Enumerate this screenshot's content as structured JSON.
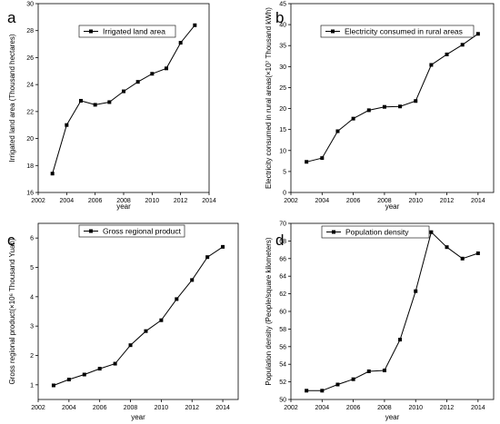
{
  "chart_data": [
    {
      "panel": "a",
      "type": "line",
      "xlabel": "year",
      "ylabel": "Irrigated land area (Thousand hectares)",
      "xlim": [
        2002,
        2014
      ],
      "ylim": [
        16,
        30
      ],
      "xticks": [
        2002,
        2004,
        2006,
        2008,
        2010,
        2012,
        2014
      ],
      "yticks": [
        16,
        18,
        20,
        22,
        24,
        26,
        28,
        30
      ],
      "legend_position": "top-center",
      "series": [
        {
          "name": "Irrigated land area",
          "x": [
            2003,
            2004,
            2005,
            2006,
            2007,
            2008,
            2009,
            2010,
            2011,
            2012,
            2013
          ],
          "y": [
            17.4,
            21.0,
            22.8,
            22.5,
            22.7,
            23.5,
            24.2,
            24.8,
            25.2,
            27.1,
            28.4
          ]
        }
      ]
    },
    {
      "panel": "b",
      "type": "line",
      "xlabel": "year",
      "ylabel": "Electricity consumed in rural areas(×10⁷ Thousand kWh)",
      "xlim": [
        2002,
        2015
      ],
      "ylim": [
        0,
        45
      ],
      "xticks": [
        2002,
        2004,
        2006,
        2008,
        2010,
        2012,
        2014
      ],
      "yticks": [
        0,
        5,
        10,
        15,
        20,
        25,
        30,
        35,
        40,
        45
      ],
      "legend_position": "top-right",
      "series": [
        {
          "name": "Electricity consumed in rural areas",
          "x": [
            2003,
            2004,
            2005,
            2006,
            2007,
            2008,
            2009,
            2010,
            2011,
            2012,
            2013,
            2014
          ],
          "y": [
            7.3,
            8.2,
            14.6,
            17.6,
            19.6,
            20.4,
            20.5,
            21.8,
            30.4,
            32.9,
            35.2,
            37.8
          ]
        }
      ]
    },
    {
      "panel": "c",
      "type": "line",
      "xlabel": "year",
      "ylabel": "Gross regional product(×10⁶ Thousand Yuan)",
      "xlim": [
        2002,
        2015
      ],
      "ylim": [
        0.5,
        6.5
      ],
      "xticks": [
        2002,
        2004,
        2006,
        2008,
        2010,
        2012,
        2014
      ],
      "yticks": [
        1,
        2,
        3,
        4,
        5,
        6
      ],
      "legend_position": "top-left",
      "series": [
        {
          "name": "Gross regional product",
          "x": [
            2003,
            2004,
            2005,
            2006,
            2007,
            2008,
            2009,
            2010,
            2011,
            2012,
            2013,
            2014
          ],
          "y": [
            0.98,
            1.18,
            1.35,
            1.55,
            1.72,
            2.35,
            2.83,
            3.2,
            3.92,
            4.57,
            5.35,
            5.7
          ]
        }
      ]
    },
    {
      "panel": "d",
      "type": "line",
      "xlabel": "year",
      "ylabel": "Population density (People/square kilometers)",
      "xlim": [
        2002,
        2015
      ],
      "ylim": [
        50,
        70
      ],
      "xticks": [
        2002,
        2004,
        2006,
        2008,
        2010,
        2012,
        2014
      ],
      "yticks": [
        50,
        52,
        54,
        56,
        58,
        60,
        62,
        64,
        66,
        68,
        70
      ],
      "legend_position": "top-left",
      "series": [
        {
          "name": "Population density",
          "x": [
            2003,
            2004,
            2005,
            2006,
            2007,
            2008,
            2009,
            2010,
            2011,
            2012,
            2013,
            2014
          ],
          "y": [
            51.0,
            51.0,
            51.7,
            52.3,
            53.2,
            53.3,
            56.8,
            62.3,
            69.0,
            67.3,
            66.0,
            66.6
          ]
        }
      ]
    }
  ]
}
